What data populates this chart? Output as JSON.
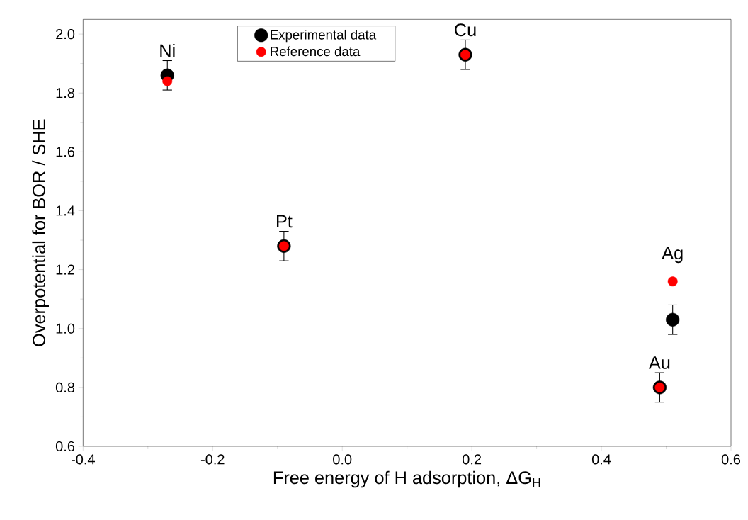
{
  "chart_data": {
    "type": "scatter",
    "xlabel": "Free energy of H adsorption, ΔG$_{H}$",
    "ylabel": "Overpotential for BOR / SHE",
    "series": [
      {
        "name": "Experimental data",
        "color": "#000000",
        "x": [
          -0.27,
          -0.09,
          0.19,
          0.51,
          0.49
        ],
        "values": [
          1.86,
          1.28,
          1.93,
          1.03,
          0.8
        ],
        "errors": [
          0.05,
          0.05,
          0.05,
          0.05,
          0.05
        ]
      },
      {
        "name": "Reference data",
        "color": "#ff0000",
        "x": [
          -0.27,
          -0.09,
          0.19,
          0.51,
          0.49
        ],
        "values": [
          1.84,
          1.28,
          1.93,
          1.16,
          0.8
        ]
      }
    ],
    "annotations": [
      {
        "text": "Ni",
        "x": -0.27,
        "y": 1.86
      },
      {
        "text": "Pt",
        "x": -0.09,
        "y": 1.28
      },
      {
        "text": "Cu",
        "x": 0.19,
        "y": 1.93
      },
      {
        "text": "Ag",
        "x": 0.51,
        "y": 1.16
      },
      {
        "text": "Au",
        "x": 0.49,
        "y": 0.8
      }
    ],
    "xlim": [
      -0.4,
      0.6
    ],
    "xticks": [
      -0.4,
      -0.2,
      {
        "value": 0,
        "label": "0.0"
      },
      0.2,
      0.4,
      0.6
    ],
    "ylim": [
      0.6,
      2.05
    ],
    "yticks": [
      0.6,
      0.8,
      {
        "value": 1,
        "label": "1.0"
      },
      1.2,
      1.4,
      1.6,
      1.8,
      {
        "value": 2,
        "label": "2.0"
      }
    ],
    "legend": "top",
    "grid": false
  }
}
